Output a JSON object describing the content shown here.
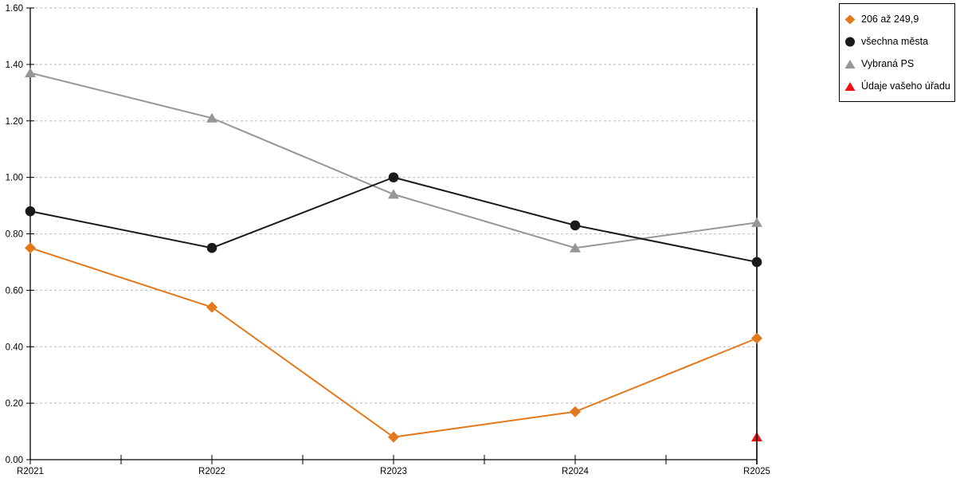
{
  "chart_data": {
    "type": "line",
    "title": "",
    "xlabel": "",
    "ylabel": "",
    "categories": [
      "R2021",
      "R2022",
      "R2023",
      "R2024",
      "R2025"
    ],
    "series": [
      {
        "name": "206 až 249,9",
        "marker": "diamond",
        "color": "#E2791C",
        "values": [
          0.75,
          0.54,
          0.08,
          0.17,
          0.43
        ]
      },
      {
        "name": "všechna města",
        "marker": "circle",
        "color": "#1A1A1A",
        "values": [
          0.88,
          0.75,
          1.0,
          0.83,
          0.7
        ]
      },
      {
        "name": "Vybraná PS",
        "marker": "triangle",
        "color": "#969696",
        "values": [
          1.37,
          1.21,
          0.94,
          0.75,
          0.84
        ]
      },
      {
        "name": "Údaje vašeho úřadu",
        "marker": "triangle",
        "color": "#EE1111",
        "values": [
          null,
          null,
          null,
          null,
          0.08
        ]
      }
    ],
    "ylim": [
      0,
      1.6
    ],
    "ytick_step": 0.2,
    "ytick_labels": [
      "0.00",
      "0.20",
      "0.40",
      "0.60",
      "0.80",
      "1.00",
      "1.20",
      "1.40",
      "1.60"
    ],
    "grid": "horizontal dotted",
    "legend_position": "top-right",
    "colors": {
      "axis": "#000000",
      "grid": "#C6C6C6",
      "background": "#FFFFFF"
    }
  }
}
